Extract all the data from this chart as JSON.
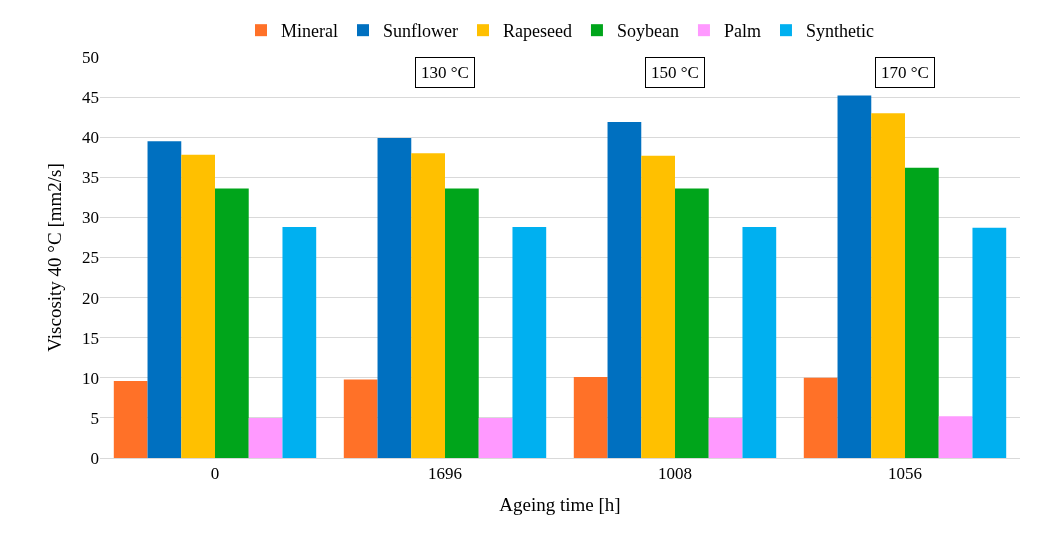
{
  "chart_data": {
    "type": "bar",
    "xlabel": "Ageing time [h]",
    "ylabel": "Viscosity 40 °C [mm2/s]",
    "categories": [
      "0",
      "1696",
      "1008",
      "1056"
    ],
    "series": [
      {
        "name": "Mineral",
        "color": "#ff7128",
        "values": [
          9.6,
          9.8,
          10.1,
          10.0
        ]
      },
      {
        "name": "Sunflower",
        "color": "#0070c0",
        "values": [
          39.5,
          39.9,
          41.9,
          45.2
        ]
      },
      {
        "name": "Rapeseed",
        "color": "#ffc000",
        "values": [
          37.8,
          38.0,
          37.7,
          43.0
        ]
      },
      {
        "name": "Soybean",
        "color": "#00a51b",
        "values": [
          33.6,
          33.6,
          33.6,
          36.2
        ]
      },
      {
        "name": "Palm",
        "color": "#ff99ff",
        "values": [
          5.0,
          5.0,
          5.0,
          5.2
        ]
      },
      {
        "name": "Synthetic",
        "color": "#00b0f0",
        "values": [
          28.8,
          28.8,
          28.8,
          28.7
        ]
      }
    ],
    "annotations": [
      "130 °C",
      "150 °C",
      "170 °C"
    ],
    "ylim": [
      0,
      50
    ],
    "yticks": [
      0,
      5,
      10,
      15,
      20,
      25,
      30,
      35,
      40,
      45,
      50
    ],
    "grid": "y",
    "legend": "top"
  }
}
